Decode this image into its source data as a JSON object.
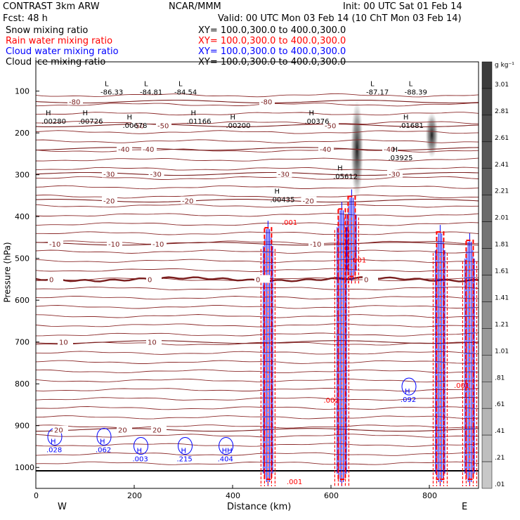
{
  "header": {
    "left": [
      "CONTRAST  3km ARW",
      "Fcst:    48 h"
    ],
    "center": "NCAR/MMM",
    "init": "Init: 00 UTC Sat 01 Feb 14",
    "valid": "Valid: 00 UTC Mon 03 Feb 14 (10 ChT Mon 03 Feb 14)",
    "fields": [
      {
        "name": "Snow mixing ratio",
        "xy": "XY= 100.0,300.0 to 400.0,300.0",
        "color": "#000000"
      },
      {
        "name": "Rain water mixing ratio",
        "xy": "XY= 100.0,300.0 to 400.0,300.0",
        "color": "#ff0000"
      },
      {
        "name": "Cloud water mixing ratio",
        "xy": "XY= 100.0,300.0 to 400.0,300.0",
        "color": "#0000ff"
      },
      {
        "name": "Cloud ice mixing ratio",
        "xy": "XY= 100.0,300.0 to 400.0,300.0",
        "color": "#000000"
      }
    ]
  },
  "chart_data": {
    "type": "contour-cross-section",
    "xlabel": "Distance (km)",
    "ylabel": "Pressure (hPa)",
    "xlim": [
      0,
      900
    ],
    "ylim": [
      1050,
      30
    ],
    "xticks": [
      0,
      200,
      400,
      600,
      800
    ],
    "yticks": [
      100,
      200,
      300,
      400,
      500,
      600,
      700,
      800,
      900,
      1000
    ],
    "end_labels": {
      "left": "W",
      "right": "E"
    },
    "colorbar": {
      "unit": "g kg⁻¹",
      "ticks": [
        "3.01",
        "2.81",
        "2.61",
        "2.41",
        "2.21",
        "2.01",
        "1.81",
        "1.61",
        "1.41",
        "1.21",
        "1.01",
        ".81",
        ".61",
        ".41",
        ".21",
        ".01"
      ]
    },
    "temperature_contours": [
      {
        "label": "-80",
        "p": 125,
        "label_x": [
          80,
          470
        ]
      },
      {
        "label": "-50",
        "p": 182,
        "label_x": [
          210,
          260,
          600
        ]
      },
      {
        "label": "-40",
        "p": 238,
        "label_x": [
          180,
          230,
          590,
          720
        ]
      },
      {
        "label": "-30",
        "p": 298,
        "label_x": [
          150,
          245,
          505,
          730
        ]
      },
      {
        "label": "-20",
        "p": 362,
        "label_x": [
          150,
          310,
          555
        ]
      },
      {
        "label": "-10",
        "p": 465,
        "label_x": [
          40,
          160,
          250,
          570
        ]
      },
      {
        "label": "0",
        "p": 550,
        "label_x": [
          40,
          240,
          460,
          680
        ]
      },
      {
        "label": "10",
        "p": 700,
        "label_x": [
          60,
          240
        ]
      },
      {
        "label": "20",
        "p": 910,
        "label_x": [
          50,
          180,
          250
        ]
      }
    ],
    "extrema": [
      {
        "label": "L -86.33",
        "x": 140,
        "p": 98
      },
      {
        "label": "L -84.81",
        "x": 220,
        "p": 98
      },
      {
        "label": "L -84.54",
        "x": 290,
        "p": 98
      },
      {
        "label": "L -87.17",
        "x": 680,
        "p": 98
      },
      {
        "label": "L -88.39",
        "x": 758,
        "p": 98
      },
      {
        "label": "H .00280",
        "x": 20,
        "p": 168
      },
      {
        "label": "H .00726",
        "x": 95,
        "p": 168
      },
      {
        "label": "H .00678",
        "x": 185,
        "p": 178
      },
      {
        "label": "H .01166",
        "x": 315,
        "p": 168
      },
      {
        "label": "H .00200",
        "x": 395,
        "p": 178
      },
      {
        "label": "H .00376",
        "x": 555,
        "p": 168
      },
      {
        "label": "H .01681",
        "x": 747,
        "p": 178
      },
      {
        "label": "H .03925",
        "x": 725,
        "p": 255
      },
      {
        "label": "H .05612",
        "x": 613,
        "p": 300
      },
      {
        "label": "H .00435",
        "x": 485,
        "p": 355
      }
    ],
    "cloud_water_labels": [
      {
        "label": "H .028",
        "x": 30,
        "p": 960
      },
      {
        "label": "H .062",
        "x": 130,
        "p": 960
      },
      {
        "label": "H .003",
        "x": 205,
        "p": 982
      },
      {
        "label": "H .215",
        "x": 295,
        "p": 982
      },
      {
        "label": "HH .404",
        "x": 378,
        "p": 982
      },
      {
        "label": "H .092",
        "x": 750,
        "p": 840
      }
    ],
    "rain_labels": [
      {
        "label": ".001",
        "x": 510,
        "p": 1040
      },
      {
        "label": ".001",
        "x": 500,
        "p": 420
      },
      {
        "label": ".001",
        "x": 640,
        "p": 510
      },
      {
        "label": ".002",
        "x": 585,
        "p": 845
      },
      {
        "label": ".001",
        "x": 850,
        "p": 810
      }
    ],
    "cells": [
      {
        "x": 472,
        "p_top": 410,
        "p_bottom": 1045
      },
      {
        "x": 622,
        "p_top": 365,
        "p_bottom": 1045
      },
      {
        "x": 642,
        "p_top": 335,
        "p_bottom": 560
      },
      {
        "x": 822,
        "p_top": 420,
        "p_bottom": 1045
      },
      {
        "x": 882,
        "p_top": 440,
        "p_bottom": 1045
      }
    ],
    "snow_shading": [
      {
        "x": 653,
        "p_top": 120,
        "p_bottom": 360,
        "max": 2.8
      },
      {
        "x": 805,
        "p_top": 150,
        "p_bottom": 260,
        "max": 1.8
      }
    ]
  }
}
